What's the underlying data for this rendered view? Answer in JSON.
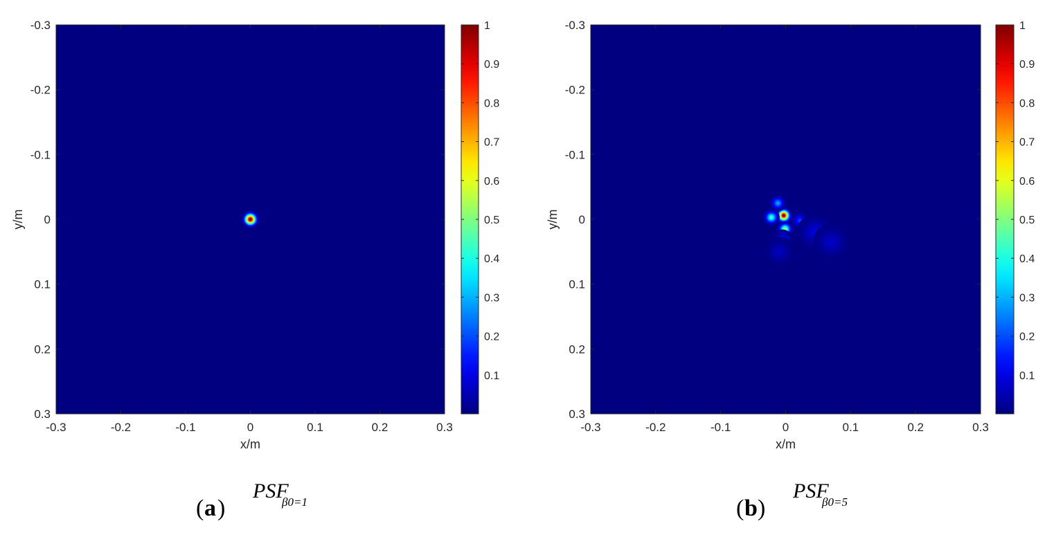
{
  "chart_data": [
    {
      "type": "heatmap",
      "panel_letter": "a",
      "caption_main": "PSF",
      "caption_sub": "β0=1",
      "xlabel": "x/m",
      "ylabel": "y/m",
      "xlim": [
        -0.3,
        0.3
      ],
      "ylim": [
        -0.3,
        0.3
      ],
      "y_axis_direction": "down",
      "x_ticks": [
        "-0.3",
        "-0.2",
        "-0.1",
        "0",
        "0.1",
        "0.2",
        "0.3"
      ],
      "y_ticks": [
        "-0.3",
        "-0.2",
        "-0.1",
        "0",
        "0.1",
        "0.2",
        "0.3"
      ],
      "colorbar": {
        "range": [
          0,
          1
        ],
        "colormap": "jet",
        "ticks": [
          "0.1",
          "0.2",
          "0.3",
          "0.4",
          "0.5",
          "0.6",
          "0.7",
          "0.8",
          "0.9",
          "1"
        ]
      },
      "peaks": [
        {
          "x": 0.0,
          "y": 0.0,
          "value": 1.0,
          "spread": 0.0055
        }
      ]
    },
    {
      "type": "heatmap",
      "panel_letter": "b",
      "caption_main": "PSF",
      "caption_sub": "β0=5",
      "xlabel": "x/m",
      "ylabel": "y/m",
      "xlim": [
        -0.3,
        0.3
      ],
      "ylim": [
        -0.3,
        0.3
      ],
      "y_axis_direction": "down",
      "x_ticks": [
        "-0.3",
        "-0.2",
        "-0.1",
        "0",
        "0.1",
        "0.2",
        "0.3"
      ],
      "y_ticks": [
        "-0.3",
        "-0.2",
        "-0.1",
        "0",
        "0.1",
        "0.2",
        "0.3"
      ],
      "colorbar": {
        "range": [
          0,
          1
        ],
        "colormap": "jet",
        "ticks": [
          "0.1",
          "0.2",
          "0.3",
          "0.4",
          "0.5",
          "0.6",
          "0.7",
          "0.8",
          "0.9",
          "1"
        ]
      },
      "peaks": [
        {
          "x": -0.003,
          "y": -0.006,
          "value": 1.0,
          "spread": 0.0052
        },
        {
          "x": -0.022,
          "y": -0.003,
          "value": 0.42,
          "spread": 0.0055
        },
        {
          "x": -0.001,
          "y": 0.015,
          "value": 0.52,
          "spread": 0.0052
        },
        {
          "x": -0.012,
          "y": -0.025,
          "value": 0.28,
          "spread": 0.0055
        },
        {
          "x": 0.022,
          "y": 0.002,
          "value": 0.18,
          "spread": 0.006
        },
        {
          "x": -0.005,
          "y": 0.032,
          "value": 0.14,
          "spread": 0.007
        },
        {
          "x": 0.045,
          "y": 0.02,
          "value": 0.09,
          "spread": 0.012
        },
        {
          "x": 0.07,
          "y": 0.035,
          "value": 0.07,
          "spread": 0.012
        },
        {
          "x": -0.01,
          "y": 0.05,
          "value": 0.06,
          "spread": 0.01
        }
      ]
    }
  ]
}
